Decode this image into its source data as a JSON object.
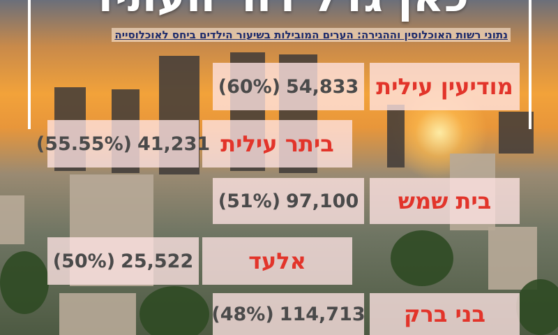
{
  "header": {
    "title": "כאן גדל דור העתיד",
    "subtitle": "נתוני רשות האוכלוסין וההגירה: הערים המובילות בשיעור הילדים ביחס לאוכלוסייה"
  },
  "rows": [
    {
      "city": "מודיעין עילית",
      "population": "54,833",
      "share": "(60%)"
    },
    {
      "city": "ביתר עילית",
      "population": "41,231",
      "share": "(55.55%)"
    },
    {
      "city": "בית שמש",
      "population": "97,100",
      "share": "(51%)"
    },
    {
      "city": "אלעד",
      "population": "25,522",
      "share": "(50%)"
    },
    {
      "city": "בני ברק",
      "population": "114,713",
      "share": "(48%)"
    }
  ]
}
